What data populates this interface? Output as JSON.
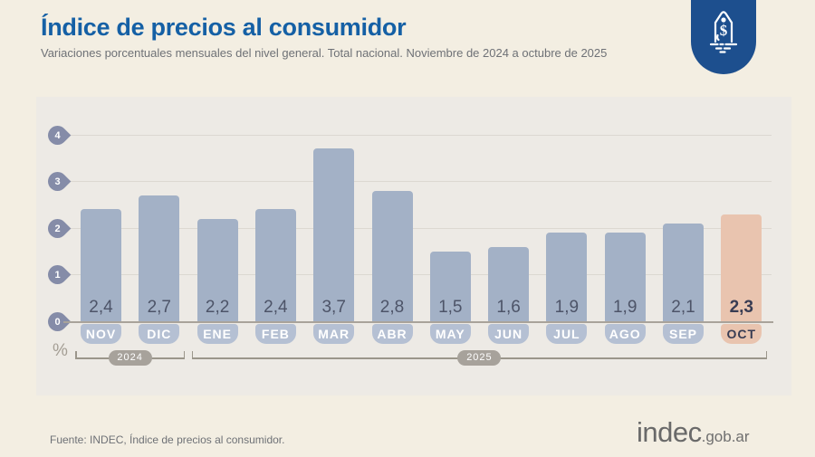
{
  "header": {
    "title": "Índice de precios al consumidor",
    "subtitle": "Variaciones porcentuales mensuales del nivel general. Total nacional. Noviembre de 2024 a octubre de 2025"
  },
  "chart_data": {
    "type": "bar",
    "title": "Índice de precios al consumidor",
    "unit": "%",
    "categories": [
      "NOV",
      "DIC",
      "ENE",
      "FEB",
      "MAR",
      "ABR",
      "MAY",
      "JUN",
      "JUL",
      "AGO",
      "SEP",
      "OCT"
    ],
    "values": [
      2.4,
      2.7,
      2.2,
      2.4,
      3.7,
      2.8,
      1.5,
      1.6,
      1.9,
      1.9,
      2.1,
      2.3
    ],
    "value_labels": [
      "2,4",
      "2,7",
      "2,2",
      "2,4",
      "3,7",
      "2,8",
      "1,5",
      "1,6",
      "1,9",
      "1,9",
      "2,1",
      "2,3"
    ],
    "highlight_index": 11,
    "y_ticks": [
      0,
      1,
      2,
      3,
      4
    ],
    "ylim": [
      0,
      4
    ],
    "grid": true,
    "year_groups": [
      {
        "label": "2024",
        "from": 0,
        "to": 1
      },
      {
        "label": "2025",
        "from": 2,
        "to": 11
      }
    ],
    "colors": {
      "bar": "#a3b1c6",
      "bar_highlight": "#e9c4af",
      "pill": "#b5c0d3",
      "pill_highlight": "#e9c4af",
      "axis_badge": "#858ca8",
      "year_pill": "#a7a29b",
      "title_blue": "#1560a5",
      "tag_badge_blue": "#1d4f8e"
    }
  },
  "footer": {
    "source": "Fuente: INDEC, Índice de precios al consumidor.",
    "logo_main": "indec",
    "logo_suffix": ".gob.ar"
  }
}
